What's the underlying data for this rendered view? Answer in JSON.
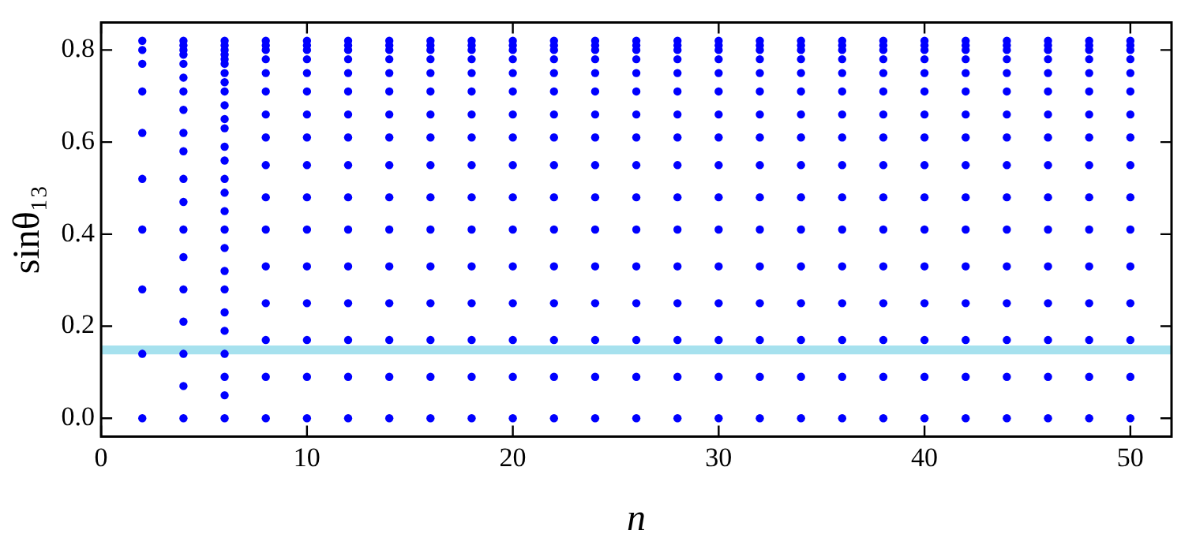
{
  "chart_data": {
    "type": "scatter",
    "xlabel": "n",
    "ylabel": "sinθ₁₃",
    "xlim": [
      0,
      52
    ],
    "xticks": [
      0,
      10,
      20,
      30,
      40,
      50
    ],
    "ylim": [
      -0.04,
      0.86
    ],
    "yticks": [
      {
        "value": 0,
        "label": "0.0"
      },
      0.2,
      0.4,
      0.6,
      0.8
    ],
    "grid": false,
    "legend": false,
    "marker": "circle",
    "bands": [
      {
        "axis": "y",
        "from": 0.139,
        "to": 0.158,
        "color": "#a6e1ee"
      }
    ],
    "series": [
      {
        "color": "#0000ff",
        "x": [
          2,
          2,
          2,
          2,
          2,
          2,
          2,
          2,
          2,
          2
        ],
        "values": [
          0,
          0.14,
          0.28,
          0.41,
          0.52,
          0.62,
          0.71,
          0.77,
          0.8,
          0.82
        ]
      },
      {
        "color": "#0000ff",
        "x": [
          4,
          4,
          4,
          4,
          4,
          4,
          4,
          4,
          4,
          4,
          4,
          4,
          4,
          4,
          4,
          4,
          4,
          4,
          4
        ],
        "values": [
          0,
          0.07,
          0.14,
          0.21,
          0.28,
          0.35,
          0.41,
          0.47,
          0.52,
          0.58,
          0.62,
          0.67,
          0.71,
          0.74,
          0.77,
          0.79,
          0.8,
          0.81,
          0.82
        ]
      },
      {
        "color": "#0000ff",
        "x": [
          6,
          6,
          6,
          6,
          6,
          6,
          6,
          6,
          6,
          6,
          6,
          6,
          6,
          6,
          6,
          6,
          6,
          6,
          6,
          6,
          6,
          6,
          6,
          6,
          6,
          6,
          6
        ],
        "values": [
          0,
          0.05,
          0.09,
          0.14,
          0.19,
          0.23,
          0.28,
          0.32,
          0.37,
          0.41,
          0.45,
          0.49,
          0.52,
          0.56,
          0.59,
          0.63,
          0.65,
          0.68,
          0.71,
          0.73,
          0.75,
          0.77,
          0.78,
          0.79,
          0.8,
          0.81,
          0.82
        ]
      },
      {
        "color": "#0000ff",
        "x": [
          8,
          8,
          8,
          8,
          8,
          8,
          8,
          8,
          8,
          8,
          8,
          8,
          8,
          8,
          8,
          8
        ],
        "values": [
          0,
          0.09,
          0.17,
          0.25,
          0.33,
          0.41,
          0.48,
          0.55,
          0.61,
          0.66,
          0.71,
          0.75,
          0.78,
          0.8,
          0.81,
          0.82
        ]
      },
      {
        "color": "#0000ff",
        "x": [
          10,
          10,
          10,
          10,
          10,
          10,
          10,
          10,
          10,
          10,
          10,
          10,
          10,
          10,
          10,
          10
        ],
        "values": [
          0,
          0.09,
          0.17,
          0.25,
          0.33,
          0.41,
          0.48,
          0.55,
          0.61,
          0.66,
          0.71,
          0.75,
          0.78,
          0.8,
          0.81,
          0.82
        ]
      },
      {
        "color": "#0000ff",
        "x": [
          12,
          12,
          12,
          12,
          12,
          12,
          12,
          12,
          12,
          12,
          12,
          12,
          12,
          12,
          12,
          12
        ],
        "values": [
          0,
          0.09,
          0.17,
          0.25,
          0.33,
          0.41,
          0.48,
          0.55,
          0.61,
          0.66,
          0.71,
          0.75,
          0.78,
          0.8,
          0.81,
          0.82
        ]
      },
      {
        "color": "#0000ff",
        "x": [
          14,
          14,
          14,
          14,
          14,
          14,
          14,
          14,
          14,
          14,
          14,
          14,
          14,
          14,
          14,
          14
        ],
        "values": [
          0,
          0.09,
          0.17,
          0.25,
          0.33,
          0.41,
          0.48,
          0.55,
          0.61,
          0.66,
          0.71,
          0.75,
          0.78,
          0.8,
          0.81,
          0.82
        ]
      },
      {
        "color": "#0000ff",
        "x": [
          16,
          16,
          16,
          16,
          16,
          16,
          16,
          16,
          16,
          16,
          16,
          16,
          16,
          16,
          16,
          16
        ],
        "values": [
          0,
          0.09,
          0.17,
          0.25,
          0.33,
          0.41,
          0.48,
          0.55,
          0.61,
          0.66,
          0.71,
          0.75,
          0.78,
          0.8,
          0.81,
          0.82
        ]
      },
      {
        "color": "#0000ff",
        "x": [
          18,
          18,
          18,
          18,
          18,
          18,
          18,
          18,
          18,
          18,
          18,
          18,
          18,
          18,
          18,
          18
        ],
        "values": [
          0,
          0.09,
          0.17,
          0.25,
          0.33,
          0.41,
          0.48,
          0.55,
          0.61,
          0.66,
          0.71,
          0.75,
          0.78,
          0.8,
          0.81,
          0.82
        ]
      },
      {
        "color": "#0000ff",
        "x": [
          20,
          20,
          20,
          20,
          20,
          20,
          20,
          20,
          20,
          20,
          20,
          20,
          20,
          20,
          20,
          20
        ],
        "values": [
          0,
          0.09,
          0.17,
          0.25,
          0.33,
          0.41,
          0.48,
          0.55,
          0.61,
          0.66,
          0.71,
          0.75,
          0.78,
          0.8,
          0.81,
          0.82
        ]
      },
      {
        "color": "#0000ff",
        "x": [
          22,
          22,
          22,
          22,
          22,
          22,
          22,
          22,
          22,
          22,
          22,
          22,
          22,
          22,
          22,
          22
        ],
        "values": [
          0,
          0.09,
          0.17,
          0.25,
          0.33,
          0.41,
          0.48,
          0.55,
          0.61,
          0.66,
          0.71,
          0.75,
          0.78,
          0.8,
          0.81,
          0.82
        ]
      },
      {
        "color": "#0000ff",
        "x": [
          24,
          24,
          24,
          24,
          24,
          24,
          24,
          24,
          24,
          24,
          24,
          24,
          24,
          24,
          24,
          24
        ],
        "values": [
          0,
          0.09,
          0.17,
          0.25,
          0.33,
          0.41,
          0.48,
          0.55,
          0.61,
          0.66,
          0.71,
          0.75,
          0.78,
          0.8,
          0.81,
          0.82
        ]
      },
      {
        "color": "#0000ff",
        "x": [
          26,
          26,
          26,
          26,
          26,
          26,
          26,
          26,
          26,
          26,
          26,
          26,
          26,
          26,
          26,
          26
        ],
        "values": [
          0,
          0.09,
          0.17,
          0.25,
          0.33,
          0.41,
          0.48,
          0.55,
          0.61,
          0.66,
          0.71,
          0.75,
          0.78,
          0.8,
          0.81,
          0.82
        ]
      },
      {
        "color": "#0000ff",
        "x": [
          28,
          28,
          28,
          28,
          28,
          28,
          28,
          28,
          28,
          28,
          28,
          28,
          28,
          28,
          28,
          28
        ],
        "values": [
          0,
          0.09,
          0.17,
          0.25,
          0.33,
          0.41,
          0.48,
          0.55,
          0.61,
          0.66,
          0.71,
          0.75,
          0.78,
          0.8,
          0.81,
          0.82
        ]
      },
      {
        "color": "#0000ff",
        "x": [
          30,
          30,
          30,
          30,
          30,
          30,
          30,
          30,
          30,
          30,
          30,
          30,
          30,
          30,
          30,
          30
        ],
        "values": [
          0,
          0.09,
          0.17,
          0.25,
          0.33,
          0.41,
          0.48,
          0.55,
          0.61,
          0.66,
          0.71,
          0.75,
          0.78,
          0.8,
          0.81,
          0.82
        ]
      },
      {
        "color": "#0000ff",
        "x": [
          32,
          32,
          32,
          32,
          32,
          32,
          32,
          32,
          32,
          32,
          32,
          32,
          32,
          32,
          32,
          32
        ],
        "values": [
          0,
          0.09,
          0.17,
          0.25,
          0.33,
          0.41,
          0.48,
          0.55,
          0.61,
          0.66,
          0.71,
          0.75,
          0.78,
          0.8,
          0.81,
          0.82
        ]
      },
      {
        "color": "#0000ff",
        "x": [
          34,
          34,
          34,
          34,
          34,
          34,
          34,
          34,
          34,
          34,
          34,
          34,
          34,
          34,
          34,
          34
        ],
        "values": [
          0,
          0.09,
          0.17,
          0.25,
          0.33,
          0.41,
          0.48,
          0.55,
          0.61,
          0.66,
          0.71,
          0.75,
          0.78,
          0.8,
          0.81,
          0.82
        ]
      },
      {
        "color": "#0000ff",
        "x": [
          36,
          36,
          36,
          36,
          36,
          36,
          36,
          36,
          36,
          36,
          36,
          36,
          36,
          36,
          36,
          36
        ],
        "values": [
          0,
          0.09,
          0.17,
          0.25,
          0.33,
          0.41,
          0.48,
          0.55,
          0.61,
          0.66,
          0.71,
          0.75,
          0.78,
          0.8,
          0.81,
          0.82
        ]
      },
      {
        "color": "#0000ff",
        "x": [
          38,
          38,
          38,
          38,
          38,
          38,
          38,
          38,
          38,
          38,
          38,
          38,
          38,
          38,
          38,
          38
        ],
        "values": [
          0,
          0.09,
          0.17,
          0.25,
          0.33,
          0.41,
          0.48,
          0.55,
          0.61,
          0.66,
          0.71,
          0.75,
          0.78,
          0.8,
          0.81,
          0.82
        ]
      },
      {
        "color": "#0000ff",
        "x": [
          40,
          40,
          40,
          40,
          40,
          40,
          40,
          40,
          40,
          40,
          40,
          40,
          40,
          40,
          40,
          40
        ],
        "values": [
          0,
          0.09,
          0.17,
          0.25,
          0.33,
          0.41,
          0.48,
          0.55,
          0.61,
          0.66,
          0.71,
          0.75,
          0.78,
          0.8,
          0.81,
          0.82
        ]
      },
      {
        "color": "#0000ff",
        "x": [
          42,
          42,
          42,
          42,
          42,
          42,
          42,
          42,
          42,
          42,
          42,
          42,
          42,
          42,
          42,
          42
        ],
        "values": [
          0,
          0.09,
          0.17,
          0.25,
          0.33,
          0.41,
          0.48,
          0.55,
          0.61,
          0.66,
          0.71,
          0.75,
          0.78,
          0.8,
          0.81,
          0.82
        ]
      },
      {
        "color": "#0000ff",
        "x": [
          44,
          44,
          44,
          44,
          44,
          44,
          44,
          44,
          44,
          44,
          44,
          44,
          44,
          44,
          44,
          44
        ],
        "values": [
          0,
          0.09,
          0.17,
          0.25,
          0.33,
          0.41,
          0.48,
          0.55,
          0.61,
          0.66,
          0.71,
          0.75,
          0.78,
          0.8,
          0.81,
          0.82
        ]
      },
      {
        "color": "#0000ff",
        "x": [
          46,
          46,
          46,
          46,
          46,
          46,
          46,
          46,
          46,
          46,
          46,
          46,
          46,
          46,
          46,
          46
        ],
        "values": [
          0,
          0.09,
          0.17,
          0.25,
          0.33,
          0.41,
          0.48,
          0.55,
          0.61,
          0.66,
          0.71,
          0.75,
          0.78,
          0.8,
          0.81,
          0.82
        ]
      },
      {
        "color": "#0000ff",
        "x": [
          48,
          48,
          48,
          48,
          48,
          48,
          48,
          48,
          48,
          48,
          48,
          48,
          48,
          48,
          48,
          48
        ],
        "values": [
          0,
          0.09,
          0.17,
          0.25,
          0.33,
          0.41,
          0.48,
          0.55,
          0.61,
          0.66,
          0.71,
          0.75,
          0.78,
          0.8,
          0.81,
          0.82
        ]
      },
      {
        "color": "#0000ff",
        "x": [
          50,
          50,
          50,
          50,
          50,
          50,
          50,
          50,
          50,
          50,
          50,
          50,
          50,
          50,
          50,
          50
        ],
        "values": [
          0,
          0.09,
          0.17,
          0.25,
          0.33,
          0.41,
          0.48,
          0.55,
          0.61,
          0.66,
          0.71,
          0.75,
          0.78,
          0.8,
          0.81,
          0.82
        ]
      }
    ]
  }
}
